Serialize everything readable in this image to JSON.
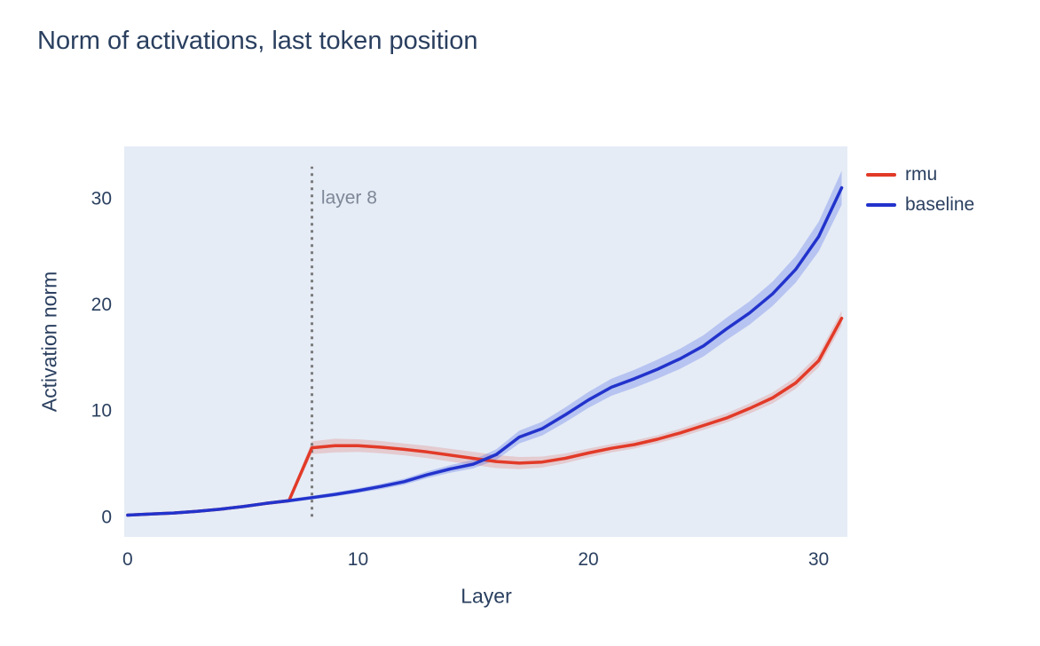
{
  "chart_data": {
    "type": "line",
    "title": "Norm of activations, last token position",
    "xlabel": "Layer",
    "ylabel": "Activation norm",
    "xlim": [
      -0.15,
      31.25
    ],
    "ylim": [
      -1.9,
      34.9
    ],
    "x_ticks": [
      0,
      10,
      20,
      30
    ],
    "y_ticks": [
      0,
      10,
      20,
      30
    ],
    "grid": false,
    "plot_bg": "#e5ecf6",
    "text_color": "#2a3f5f",
    "legend_position": "outside-top-right",
    "x": [
      0,
      1,
      2,
      3,
      4,
      5,
      6,
      7,
      8,
      9,
      10,
      11,
      12,
      13,
      14,
      15,
      16,
      17,
      18,
      19,
      20,
      21,
      22,
      23,
      24,
      25,
      26,
      27,
      28,
      29,
      30,
      31
    ],
    "series": [
      {
        "name": "rmu",
        "color": "#e23a28",
        "band_color": "rgba(226,58,40,0.18)",
        "values": [
          0.15,
          0.25,
          0.35,
          0.5,
          0.7,
          0.95,
          1.25,
          1.5,
          6.5,
          6.7,
          6.7,
          6.55,
          6.35,
          6.1,
          5.8,
          5.5,
          5.2,
          5.05,
          5.15,
          5.5,
          6.0,
          6.45,
          6.8,
          7.3,
          7.9,
          8.6,
          9.3,
          10.2,
          11.2,
          12.6,
          14.7,
          18.7
        ],
        "band_halfwidth": [
          0.05,
          0.06,
          0.08,
          0.1,
          0.12,
          0.14,
          0.16,
          0.18,
          0.6,
          0.65,
          0.6,
          0.58,
          0.56,
          0.58,
          0.6,
          0.62,
          0.62,
          0.58,
          0.52,
          0.46,
          0.42,
          0.4,
          0.38,
          0.38,
          0.4,
          0.42,
          0.44,
          0.48,
          0.52,
          0.56,
          0.62,
          0.7
        ]
      },
      {
        "name": "baseline",
        "color": "#2233cc",
        "band_color": "rgba(64,92,231,0.28)",
        "values": [
          0.15,
          0.25,
          0.35,
          0.5,
          0.7,
          0.95,
          1.25,
          1.5,
          1.8,
          2.1,
          2.45,
          2.85,
          3.3,
          3.95,
          4.5,
          4.95,
          5.85,
          7.5,
          8.3,
          9.6,
          11.0,
          12.2,
          13.0,
          13.9,
          14.9,
          16.1,
          17.7,
          19.2,
          21.0,
          23.3,
          26.4,
          31.0
        ],
        "band_halfwidth": [
          0.05,
          0.05,
          0.06,
          0.08,
          0.1,
          0.12,
          0.14,
          0.16,
          0.18,
          0.2,
          0.22,
          0.25,
          0.28,
          0.32,
          0.36,
          0.4,
          0.5,
          0.6,
          0.65,
          0.7,
          0.75,
          0.8,
          0.85,
          0.9,
          0.95,
          1.0,
          1.05,
          1.1,
          1.15,
          1.25,
          1.4,
          1.6
        ]
      }
    ],
    "vline": {
      "x": 8,
      "y0": 0,
      "y1": 33,
      "color": "#7a7a7a",
      "style": "dotted"
    },
    "annotation": {
      "text": "layer 8",
      "x": 8.4,
      "y": 29.5,
      "color": "#7e8797"
    }
  }
}
